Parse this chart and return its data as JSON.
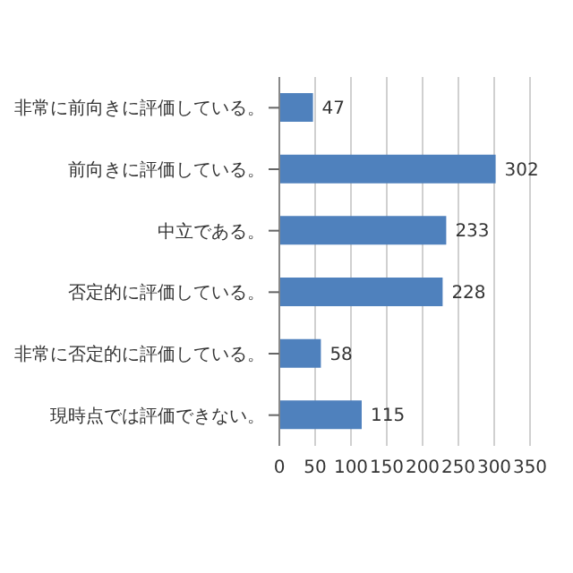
{
  "chart_data": {
    "type": "bar",
    "orientation": "horizontal",
    "categories": [
      "非常に前向きに評価している。",
      "前向きに評価している。",
      "中立である。",
      "否定的に評価している。",
      "非常に否定的に評価している。",
      "現時点では評価できない。"
    ],
    "values": [
      47,
      302,
      233,
      228,
      58,
      115
    ],
    "color": "#4f81bd",
    "xlim": [
      0,
      350
    ],
    "xticks": [
      0,
      50,
      100,
      150,
      200,
      250,
      300,
      350
    ],
    "grid": "x",
    "data_labels": true
  }
}
